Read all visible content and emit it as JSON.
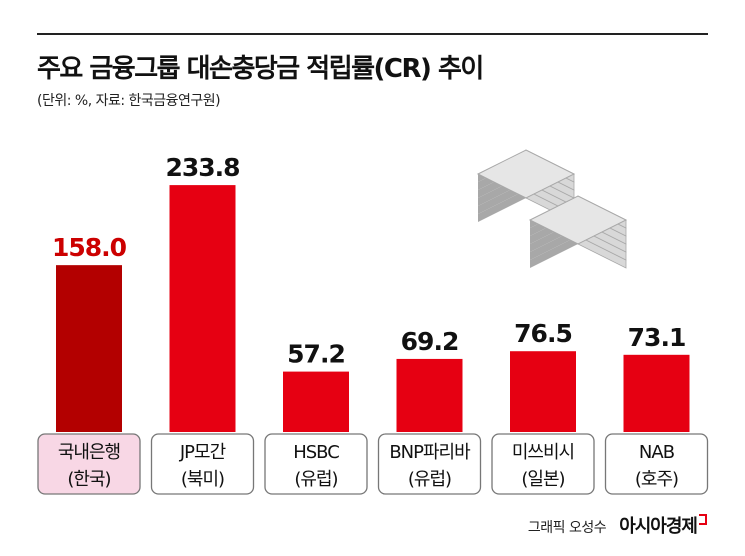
{
  "title": "주요 금융그룹 대손충당금 적립률(CR) 추이",
  "subtitle": "(단위: %, 자료: 한국금융연구원)",
  "credit": {
    "byline": "그래픽 오성수",
    "brand": "아시아경제"
  },
  "colors": {
    "highlight_bar": "#b30000",
    "highlight_value": "#cc0000",
    "bar": "#e60012",
    "highlight_label_bg": "#f8d7e5",
    "label_bg": "#ffffff",
    "label_border": "#777777",
    "icon_light": "#d8d8d8",
    "icon_dark": "#a8a8a8"
  },
  "illustration": {
    "icon": "money-stacks-icon"
  },
  "chart_data": {
    "type": "bar",
    "title": "주요 금융그룹 대손충당금 적립률(CR) 추이",
    "subtitle": "(단위: %, 자료: 한국금융연구원)",
    "unit": "%",
    "categories": [
      {
        "name": "국내은행",
        "region": "(한국)"
      },
      {
        "name": "JP모간",
        "region": "(북미)"
      },
      {
        "name": "HSBC",
        "region": "(유럽)"
      },
      {
        "name": "BNP파리바",
        "region": "(유럽)"
      },
      {
        "name": "미쓰비시",
        "region": "(일본)"
      },
      {
        "name": "NAB",
        "region": "(호주)"
      }
    ],
    "values": [
      158.0,
      233.8,
      57.2,
      69.2,
      76.5,
      73.1
    ],
    "value_labels": [
      "158.0",
      "233.8",
      "57.2",
      "69.2",
      "76.5",
      "73.1"
    ],
    "highlight_index": 0,
    "ylim": [
      0,
      250
    ],
    "grid": false,
    "legend": "none"
  }
}
